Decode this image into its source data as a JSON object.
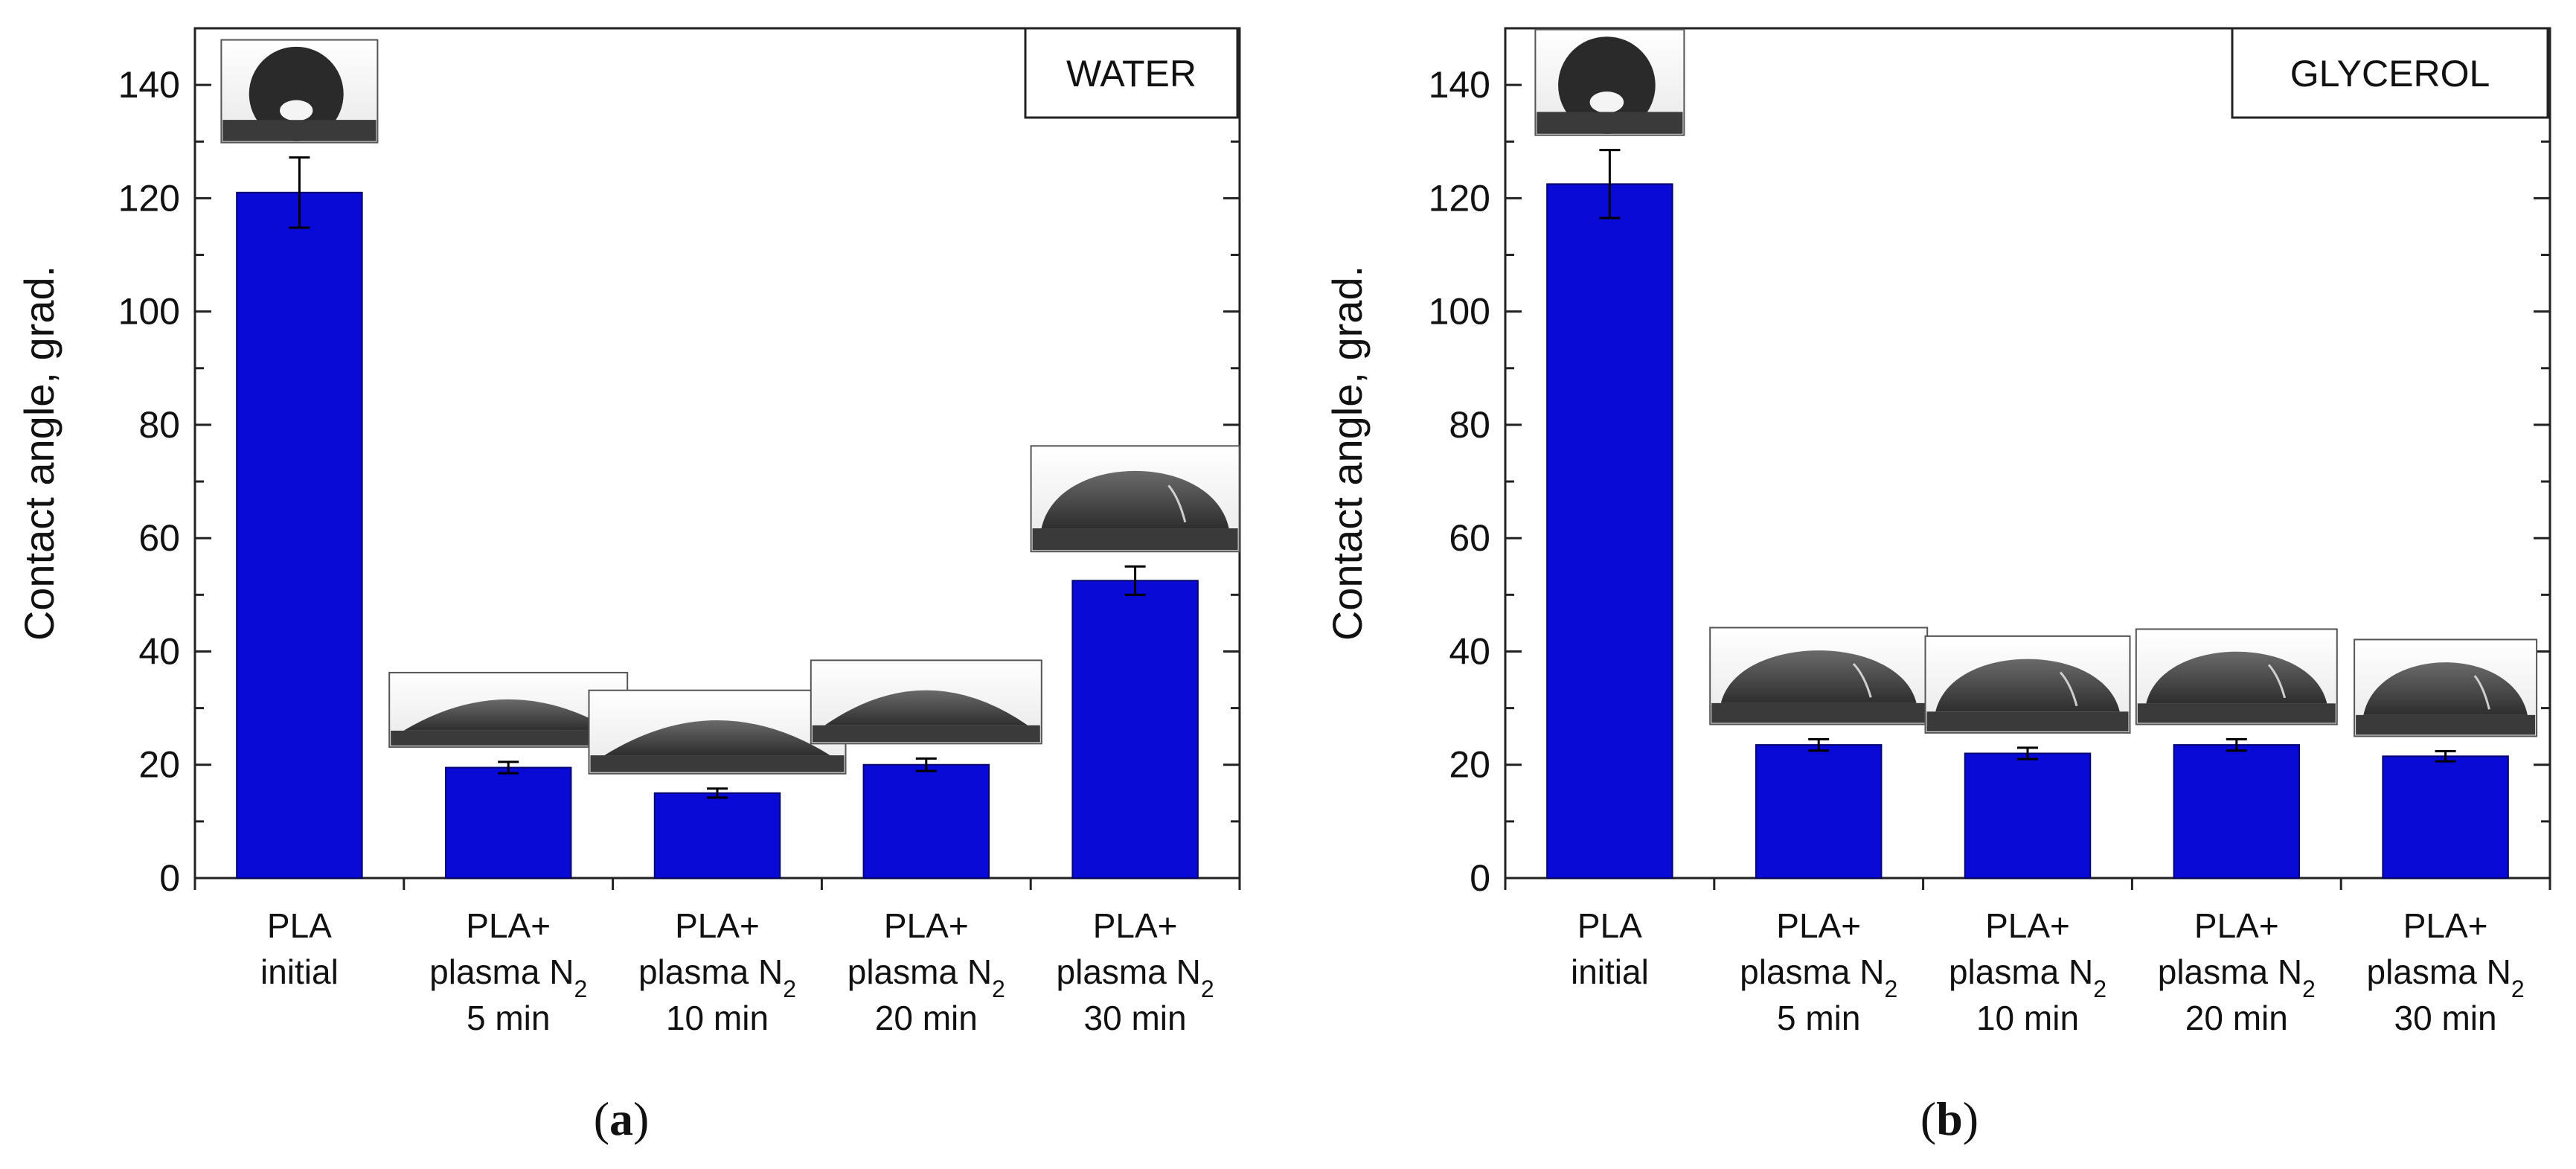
{
  "colors": {
    "bar": "#0a0ad6",
    "bar_edge": "#05056e",
    "axis": "#222222"
  },
  "chart_data": [
    {
      "type": "bar",
      "caption_letter": "a",
      "box_title": "WATER",
      "ylabel": "Contact angle, grad.",
      "ylim": [
        0,
        150
      ],
      "yticks": [
        0,
        20,
        40,
        60,
        80,
        100,
        120,
        140
      ],
      "categories": [
        {
          "lines": [
            "PLA",
            "initial"
          ]
        },
        {
          "lines": [
            "PLA+",
            "plasma N",
            "5 min"
          ],
          "sub": "2"
        },
        {
          "lines": [
            "PLA+",
            "plasma N",
            "10 min"
          ],
          "sub": "2"
        },
        {
          "lines": [
            "PLA+",
            "plasma N",
            "20 min"
          ],
          "sub": "2"
        },
        {
          "lines": [
            "PLA+",
            "plasma N",
            "30 min"
          ],
          "sub": "2"
        }
      ],
      "values": [
        121,
        19.5,
        15,
        20,
        52.5
      ],
      "errors": [
        6.2,
        1,
        0.8,
        1.1,
        2.5
      ],
      "droplet_images": [
        "droplet-high-contact-angle",
        "droplet-flat",
        "droplet-flat",
        "droplet-flat",
        "droplet-medium"
      ]
    },
    {
      "type": "bar",
      "caption_letter": "b",
      "box_title": "GLYCEROL",
      "ylabel": "Contact angle, grad.",
      "ylim": [
        0,
        150
      ],
      "yticks": [
        0,
        20,
        40,
        60,
        80,
        100,
        120,
        140
      ],
      "categories": [
        {
          "lines": [
            "PLA",
            "initial"
          ]
        },
        {
          "lines": [
            "PLA+",
            "plasma N",
            "5 min"
          ],
          "sub": "2"
        },
        {
          "lines": [
            "PLA+",
            "plasma N",
            "10 min"
          ],
          "sub": "2"
        },
        {
          "lines": [
            "PLA+",
            "plasma N",
            "20 min"
          ],
          "sub": "2"
        },
        {
          "lines": [
            "PLA+",
            "plasma N",
            "30 min"
          ],
          "sub": "2"
        }
      ],
      "values": [
        122.5,
        23.5,
        22,
        23.5,
        21.5
      ],
      "errors": [
        6,
        1,
        1,
        1,
        0.9
      ],
      "droplet_images": [
        "droplet-high-contact-angle",
        "droplet-medium",
        "droplet-medium",
        "droplet-medium",
        "droplet-medium"
      ]
    }
  ]
}
